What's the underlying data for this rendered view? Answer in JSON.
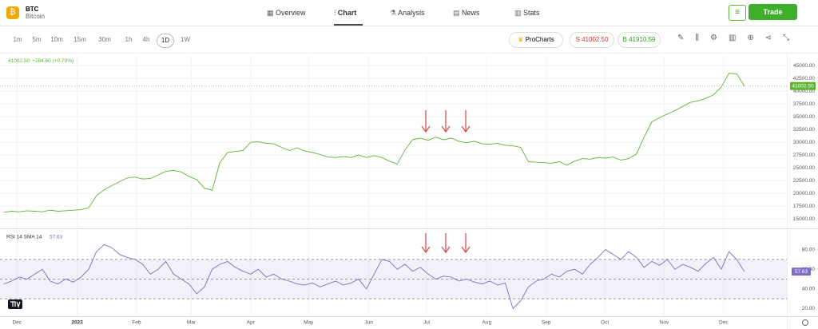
{
  "header": {
    "symbol": "BTC",
    "name": "Bitcoin",
    "tabs": [
      "Overview",
      "Chart",
      "Analysis",
      "News",
      "Stats"
    ],
    "active_tab": "Chart",
    "trade": "Trade"
  },
  "toolbar": {
    "timeframes": [
      "1m",
      "5m",
      "10m",
      "15m",
      "30m",
      "1h",
      "4h",
      "1D",
      "1W"
    ],
    "active_timeframe": "1D",
    "procharts": "ProCharts",
    "sell": "S 41002.50",
    "buy": "B 41910.59"
  },
  "chart_data": [
    {
      "type": "line",
      "color": "#5cb531",
      "last_label": "41002.50",
      "change": "+284.60 (+0.70%)",
      "xlim": [
        -0.5,
        101.5
      ],
      "ylim": [
        13300,
        46900
      ],
      "grid": true,
      "yticks": [
        {
          "value": 15000,
          "label": "15000.00"
        },
        {
          "value": 17500,
          "label": "17500.00"
        },
        {
          "value": 20000,
          "label": "20000.00"
        },
        {
          "value": 22500,
          "label": "22500.00"
        },
        {
          "value": 25000,
          "label": "25000.00"
        },
        {
          "value": 27500,
          "label": "27500.00"
        },
        {
          "value": 30000,
          "label": "30000.00"
        },
        {
          "value": 32500,
          "label": "32500.00"
        },
        {
          "value": 35000,
          "label": "35000.00"
        },
        {
          "value": 37500,
          "label": "37500.00"
        },
        {
          "value": 40000,
          "label": "40000.00"
        },
        {
          "value": 42500,
          "label": "42500.00"
        },
        {
          "value": 45000,
          "label": "45000.00"
        }
      ],
      "values": [
        16300,
        16500,
        16400,
        16600,
        16500,
        16400,
        16700,
        16500,
        16600,
        16700,
        16800,
        17200,
        19500,
        20700,
        21500,
        22300,
        23000,
        23200,
        22800,
        22900,
        23600,
        24300,
        24500,
        24200,
        23300,
        22700,
        21000,
        20600,
        26000,
        28000,
        28200,
        28400,
        30000,
        30100,
        29800,
        29700,
        29000,
        28400,
        28900,
        28300,
        28000,
        27600,
        27100,
        27000,
        27200,
        27000,
        27500,
        27000,
        27400,
        27000,
        26300,
        25700,
        28500,
        30500,
        30800,
        30400,
        31000,
        30500,
        30800,
        30200,
        29900,
        30200,
        29700,
        29600,
        29800,
        29400,
        29300,
        29000,
        26200,
        26100,
        26000,
        25900,
        26200,
        25500,
        26300,
        26800,
        26700,
        27000,
        26900,
        27100,
        26500,
        26800,
        27700,
        31000,
        34000,
        34800,
        35500,
        36200,
        37000,
        37800,
        38100,
        38600,
        39300,
        40800,
        43500,
        43400,
        41002.5
      ]
    },
    {
      "type": "line",
      "title": "RSI 14 SMA 14",
      "color": "#7e6cc4",
      "xlim": [
        -0.5,
        101.5
      ],
      "ylim": [
        13,
        100
      ],
      "levels": [
        70,
        50,
        30
      ],
      "yticks": [
        {
          "value": 20,
          "label": "20.00"
        },
        {
          "value": 40,
          "label": "40.00"
        },
        {
          "value": 60,
          "label": "60.00"
        },
        {
          "value": 80,
          "label": "80.00"
        }
      ],
      "xticks": [
        {
          "value": 1.7,
          "label": "Dec"
        },
        {
          "value": 9.5,
          "label": "2023"
        },
        {
          "value": 17.2,
          "label": "Feb"
        },
        {
          "value": 24.3,
          "label": "Mar"
        },
        {
          "value": 32,
          "label": "Apr"
        },
        {
          "value": 39.5,
          "label": "May"
        },
        {
          "value": 47.3,
          "label": "Jun"
        },
        {
          "value": 54.8,
          "label": "Jul"
        },
        {
          "value": 62.6,
          "label": "Aug"
        },
        {
          "value": 70.3,
          "label": "Sep"
        },
        {
          "value": 77.9,
          "label": "Oct"
        },
        {
          "value": 85.6,
          "label": "Nov"
        },
        {
          "value": 93.3,
          "label": "Dec"
        }
      ],
      "values": [
        45,
        48,
        52,
        50,
        55,
        60,
        48,
        45,
        50,
        47,
        52,
        60,
        78,
        85,
        82,
        75,
        72,
        70,
        65,
        55,
        60,
        68,
        55,
        50,
        45,
        35,
        42,
        60,
        65,
        68,
        62,
        58,
        55,
        60,
        52,
        55,
        50,
        48,
        45,
        44,
        46,
        42,
        45,
        48,
        44,
        46,
        50,
        40,
        55,
        70,
        68,
        60,
        65,
        58,
        62,
        55,
        50,
        53,
        52,
        48,
        50,
        47,
        45,
        48,
        44,
        46,
        20,
        28,
        42,
        48,
        50,
        55,
        52,
        58,
        60,
        55,
        65,
        72,
        80,
        75,
        70,
        78,
        72,
        62,
        68,
        64,
        70,
        60,
        65,
        62,
        58,
        66,
        72,
        60,
        78,
        70,
        57.63
      ]
    }
  ]
}
